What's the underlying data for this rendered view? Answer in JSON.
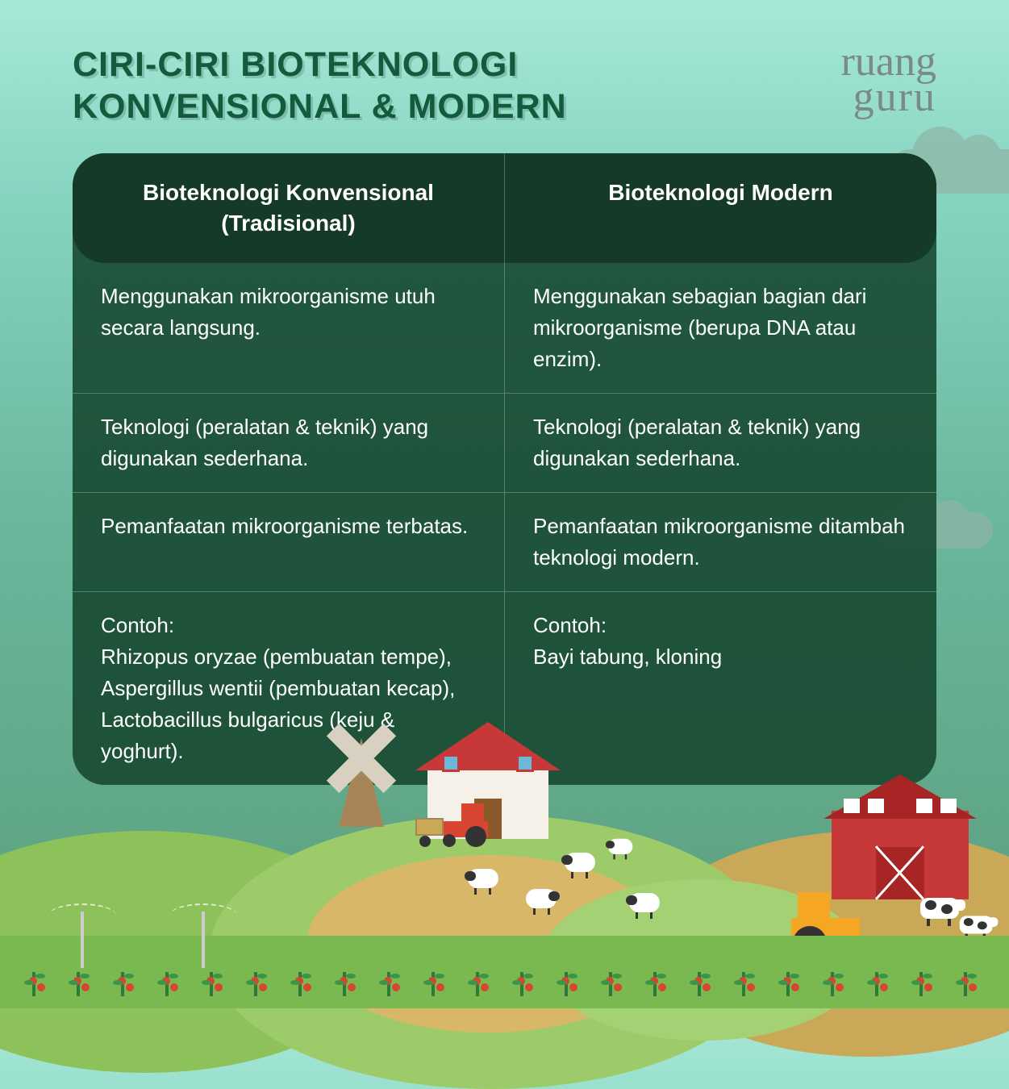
{
  "title": "CIRI-CIRI BIOTEKNOLOGI\nKONVENSIONAL & MODERN",
  "logo": {
    "line1": "ruang",
    "line2": "guru"
  },
  "colors": {
    "title_text": "#145a3c",
    "logo_text": "#7a8a85",
    "table_header_bg": "#153a28",
    "table_body_bg": "rgba(20,70,45,0.88)",
    "table_text": "#ffffff",
    "bg_top": "#a8e8d8",
    "bg_bottom": "#5a9d7a",
    "barn_red": "#c73838",
    "tractor_orange": "#f5a623",
    "hill_green": "#8dc25a"
  },
  "typography": {
    "title_fontsize": 43,
    "title_weight": 800,
    "header_fontsize": 28,
    "body_fontsize": 26
  },
  "table": {
    "type": "table",
    "columns": [
      "Bioteknologi Konvensional (Tradisional)",
      "Bioteknologi Modern"
    ],
    "rows": [
      [
        "Menggunakan mikroorganisme utuh secara langsung.",
        "Menggunakan sebagian bagian dari mikroorganisme (berupa DNA atau enzim)."
      ],
      [
        "Teknologi (peralatan & teknik) yang digunakan sederhana.",
        "Teknologi (peralatan & teknik) yang digunakan sederhana."
      ],
      [
        "Pemanfaatan mikroorganisme terbatas.",
        "Pemanfaatan mikroorganisme ditambah teknologi modern."
      ],
      [
        "Contoh:\nRhizopus oryzae (pembuatan tempe), Aspergillus wentii (pembuatan kecap), Lactobacillus bulgaricus (keju & yoghurt).",
        "Contoh:\nBayi tabung, kloning"
      ]
    ]
  }
}
